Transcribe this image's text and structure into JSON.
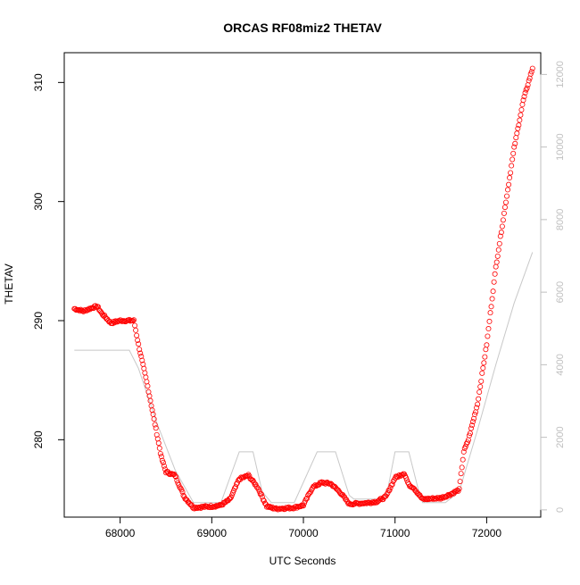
{
  "chart_data": {
    "type": "scatter",
    "title": "ORCAS RF08miz2 THETAV",
    "xlabel": "UTC Seconds",
    "ylabel": "THETAV",
    "xlim": [
      67390,
      72590
    ],
    "ylim": [
      273.5,
      312.5
    ],
    "y2lim": [
      -200,
      12600
    ],
    "x_ticks": [
      68000,
      69000,
      70000,
      71000,
      72000
    ],
    "y_ticks": [
      280,
      290,
      300,
      310
    ],
    "y2_ticks": [
      0,
      2000,
      4000,
      6000,
      8000,
      10000,
      12000
    ],
    "grid": false,
    "legend": "none",
    "colors": {
      "points": "#ff0000",
      "altitude_line": "#c8c8c8",
      "axis": "#000000",
      "right_axis": "#bfbfbf"
    },
    "series": [
      {
        "axis": "left",
        "style": "open-circles",
        "keypoints": [
          [
            67500,
            291.0
          ],
          [
            67600,
            290.8
          ],
          [
            67700,
            291.1
          ],
          [
            67750,
            291.2
          ],
          [
            67800,
            290.6
          ],
          [
            67900,
            289.8
          ],
          [
            68000,
            290.0
          ],
          [
            68100,
            290.0
          ],
          [
            68150,
            290.0
          ],
          [
            68200,
            288.0
          ],
          [
            68300,
            284.5
          ],
          [
            68400,
            280.5
          ],
          [
            68450,
            278.5
          ],
          [
            68500,
            277.3
          ],
          [
            68600,
            277.0
          ],
          [
            68700,
            275.2
          ],
          [
            68800,
            274.3
          ],
          [
            69000,
            274.4
          ],
          [
            69100,
            274.5
          ],
          [
            69200,
            275.0
          ],
          [
            69300,
            276.7
          ],
          [
            69400,
            277.0
          ],
          [
            69500,
            276.0
          ],
          [
            69600,
            274.4
          ],
          [
            69700,
            274.2
          ],
          [
            69900,
            274.3
          ],
          [
            70000,
            274.5
          ],
          [
            70100,
            276.0
          ],
          [
            70200,
            276.4
          ],
          [
            70300,
            276.3
          ],
          [
            70400,
            275.6
          ],
          [
            70500,
            274.6
          ],
          [
            70700,
            274.7
          ],
          [
            70800,
            274.8
          ],
          [
            70900,
            275.2
          ],
          [
            71000,
            276.8
          ],
          [
            71100,
            277.2
          ],
          [
            71150,
            276.2
          ],
          [
            71200,
            276.0
          ],
          [
            71300,
            275.0
          ],
          [
            71500,
            275.1
          ],
          [
            71600,
            275.4
          ],
          [
            71700,
            275.8
          ],
          [
            71750,
            279.0
          ],
          [
            71800,
            280.0
          ],
          [
            71900,
            283.0
          ],
          [
            72000,
            288.0
          ],
          [
            72100,
            294.5
          ],
          [
            72200,
            299.5
          ],
          [
            72300,
            304.5
          ],
          [
            72400,
            308.5
          ],
          [
            72500,
            311.2
          ]
        ]
      },
      {
        "axis": "right",
        "style": "line",
        "points": [
          [
            67500,
            4400
          ],
          [
            68100,
            4400
          ],
          [
            68200,
            3900
          ],
          [
            68400,
            2400
          ],
          [
            68600,
            1100
          ],
          [
            68800,
            200
          ],
          [
            69100,
            200
          ],
          [
            69300,
            1600
          ],
          [
            69450,
            1600
          ],
          [
            69550,
            500
          ],
          [
            69650,
            200
          ],
          [
            69900,
            200
          ],
          [
            70150,
            1600
          ],
          [
            70350,
            1600
          ],
          [
            70500,
            400
          ],
          [
            70550,
            300
          ],
          [
            70900,
            300
          ],
          [
            71000,
            1600
          ],
          [
            71150,
            1600
          ],
          [
            71250,
            600
          ],
          [
            71300,
            200
          ],
          [
            71550,
            200
          ],
          [
            71650,
            400
          ],
          [
            71700,
            500
          ],
          [
            71900,
            2200
          ],
          [
            72100,
            4000
          ],
          [
            72300,
            5700
          ],
          [
            72500,
            7100
          ]
        ]
      }
    ]
  }
}
